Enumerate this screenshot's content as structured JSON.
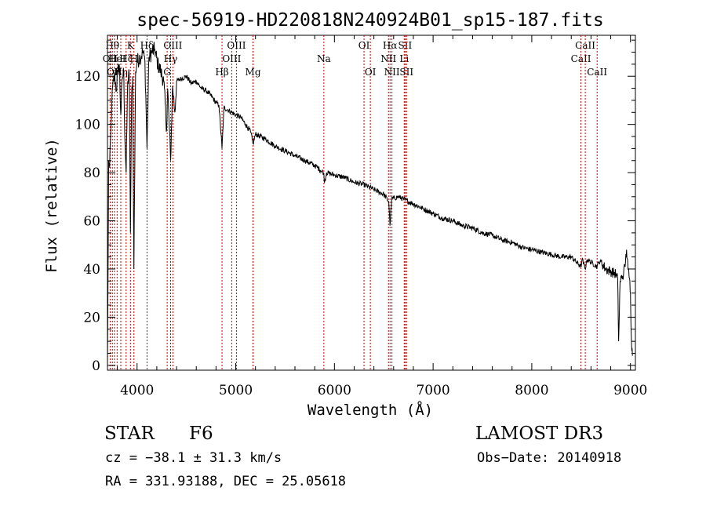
{
  "chart_data": {
    "type": "line",
    "title": "spec-56919-HD220818N240924B01_sp15-187.fits",
    "xlabel": "Wavelength (Å)",
    "ylabel": "Flux (relative)",
    "xlim": [
      3700,
      9050
    ],
    "ylim": [
      -2,
      137
    ],
    "xticks": [
      4000,
      5000,
      6000,
      7000,
      8000,
      9000
    ],
    "yticks": [
      0,
      20,
      40,
      60,
      80,
      100,
      120
    ],
    "grid": false,
    "series": [
      {
        "name": "flux",
        "color": "#000000",
        "anchors": [
          [
            3700,
            0
          ],
          [
            3705,
            30
          ],
          [
            3712,
            85
          ],
          [
            3722,
            82
          ],
          [
            3732,
            95
          ],
          [
            3745,
            110
          ],
          [
            3760,
            118
          ],
          [
            3775,
            120
          ],
          [
            3790,
            114
          ],
          [
            3805,
            122
          ],
          [
            3820,
            125
          ],
          [
            3835,
            104
          ],
          [
            3850,
            119
          ],
          [
            3865,
            122
          ],
          [
            3875,
            96
          ],
          [
            3889,
            80
          ],
          [
            3905,
            118
          ],
          [
            3920,
            121
          ],
          [
            3933,
            55
          ],
          [
            3945,
            112
          ],
          [
            3955,
            120
          ],
          [
            3968,
            40
          ],
          [
            3985,
            122
          ],
          [
            4000,
            126
          ],
          [
            4030,
            128
          ],
          [
            4060,
            130
          ],
          [
            4080,
            126
          ],
          [
            4101,
            90
          ],
          [
            4120,
            128
          ],
          [
            4150,
            130
          ],
          [
            4180,
            131
          ],
          [
            4210,
            125
          ],
          [
            4240,
            122
          ],
          [
            4270,
            118
          ],
          [
            4300,
            98
          ],
          [
            4310,
            115
          ],
          [
            4340,
            85
          ],
          [
            4360,
            116
          ],
          [
            4383,
            105
          ],
          [
            4400,
            118
          ],
          [
            4450,
            119
          ],
          [
            4500,
            120
          ],
          [
            4550,
            117
          ],
          [
            4600,
            118
          ],
          [
            4650,
            115
          ],
          [
            4700,
            114
          ],
          [
            4750,
            112
          ],
          [
            4800,
            109
          ],
          [
            4830,
            108
          ],
          [
            4861,
            90
          ],
          [
            4880,
            107
          ],
          [
            4920,
            106
          ],
          [
            4960,
            105
          ],
          [
            5000,
            104
          ],
          [
            5050,
            103
          ],
          [
            5100,
            100
          ],
          [
            5150,
            97
          ],
          [
            5175,
            92
          ],
          [
            5200,
            96
          ],
          [
            5300,
            94
          ],
          [
            5400,
            91
          ],
          [
            5500,
            89
          ],
          [
            5600,
            87
          ],
          [
            5700,
            85
          ],
          [
            5800,
            83
          ],
          [
            5890,
            80
          ],
          [
            5900,
            76
          ],
          [
            5920,
            80
          ],
          [
            6000,
            79
          ],
          [
            6100,
            78
          ],
          [
            6200,
            76
          ],
          [
            6300,
            75
          ],
          [
            6400,
            73
          ],
          [
            6500,
            71
          ],
          [
            6550,
            68
          ],
          [
            6563,
            58
          ],
          [
            6580,
            69
          ],
          [
            6650,
            70
          ],
          [
            6700,
            69
          ],
          [
            6800,
            67
          ],
          [
            6900,
            65
          ],
          [
            7000,
            63
          ],
          [
            7100,
            61
          ],
          [
            7200,
            60
          ],
          [
            7300,
            58
          ],
          [
            7400,
            57
          ],
          [
            7500,
            55
          ],
          [
            7600,
            54
          ],
          [
            7700,
            52
          ],
          [
            7800,
            51
          ],
          [
            7900,
            49
          ],
          [
            8000,
            48
          ],
          [
            8100,
            47
          ],
          [
            8200,
            46
          ],
          [
            8300,
            45
          ],
          [
            8400,
            45
          ],
          [
            8498,
            41
          ],
          [
            8510,
            44
          ],
          [
            8542,
            40
          ],
          [
            8560,
            44
          ],
          [
            8662,
            41
          ],
          [
            8680,
            43
          ],
          [
            8700,
            43
          ],
          [
            8750,
            40
          ],
          [
            8800,
            39
          ],
          [
            8850,
            38
          ],
          [
            8870,
            36
          ],
          [
            8880,
            10
          ],
          [
            8895,
            35
          ],
          [
            8930,
            38
          ],
          [
            8950,
            43
          ],
          [
            8960,
            48
          ],
          [
            8975,
            40
          ],
          [
            8990,
            36
          ],
          [
            9000,
            30
          ],
          [
            9010,
            10
          ],
          [
            9020,
            4
          ]
        ]
      }
    ],
    "line_markers": [
      {
        "wavelength": 3727,
        "label": "OII",
        "row": 2,
        "color": "#cc0000"
      },
      {
        "wavelength": 3750,
        "label": "Hθ",
        "row": 1,
        "color": "#cc0000"
      },
      {
        "wavelength": 3770,
        "label": "OII",
        "row": 3,
        "color": "#cc0000"
      },
      {
        "wavelength": 3798,
        "label": "HeI",
        "row": 2,
        "color": "#cc0000"
      },
      {
        "wavelength": 3835,
        "label": "Hη",
        "row": 3,
        "color": "#cc0000"
      },
      {
        "wavelength": 3889,
        "label": "Hζ",
        "row": 2,
        "color": "#cc0000"
      },
      {
        "wavelength": 3933,
        "label": "K",
        "row": 1,
        "color": "#cc0000"
      },
      {
        "wavelength": 3968,
        "label": "H",
        "row": 2,
        "color": "#cc0000"
      },
      {
        "wavelength": 4101,
        "label": "Hδ",
        "row": 1,
        "color": "#cc0000"
      },
      {
        "wavelength": 4305,
        "label": "G",
        "row": 3,
        "color": "#cc0000"
      },
      {
        "wavelength": 4340,
        "label": "Hγ",
        "row": 2,
        "color": "#cc0000"
      },
      {
        "wavelength": 4363,
        "label": "OIII",
        "row": 1,
        "color": "#cc0000"
      },
      {
        "wavelength": 4861,
        "label": "Hβ",
        "row": 3,
        "color": "#cc0000"
      },
      {
        "wavelength": 4959,
        "label": "OIII",
        "row": 2,
        "color": "#cc0000"
      },
      {
        "wavelength": 5007,
        "label": "OIII",
        "row": 1,
        "color": "#cc0000"
      },
      {
        "wavelength": 5175,
        "label": "Mg",
        "row": 3,
        "color": "#cc0000"
      },
      {
        "wavelength": 5893,
        "label": "Na",
        "row": 2,
        "color": "#cc0000"
      },
      {
        "wavelength": 6300,
        "label": "OI",
        "row": 1,
        "color": "#cc0000"
      },
      {
        "wavelength": 6364,
        "label": "OI",
        "row": 3,
        "color": "#cc0000"
      },
      {
        "wavelength": 6548,
        "label": "NII",
        "row": 2,
        "color": "#cc0000"
      },
      {
        "wavelength": 6563,
        "label": "Hα",
        "row": 1,
        "color": "#cc0000"
      },
      {
        "wavelength": 6583,
        "label": "NII",
        "row": 3,
        "color": "#cc0000"
      },
      {
        "wavelength": 6707,
        "label": "Li",
        "row": 2,
        "color": "#cc0000"
      },
      {
        "wavelength": 6716,
        "label": "SII",
        "row": 1,
        "color": "#cc0000"
      },
      {
        "wavelength": 6731,
        "label": "SII",
        "row": 3,
        "color": "#cc0000"
      },
      {
        "wavelength": 8498,
        "label": "CaII",
        "row": 2,
        "color": "#cc0000"
      },
      {
        "wavelength": 8542,
        "label": "CaII",
        "row": 1,
        "color": "#cc0000"
      },
      {
        "wavelength": 8662,
        "label": "CaII",
        "row": 3,
        "color": "#cc0000"
      }
    ]
  },
  "info": {
    "object_class": "STAR",
    "subclass": "F6",
    "survey": "LAMOST DR3",
    "redshift": "cz = −38.1 ± 31.3 km/s",
    "obs_date": "Obs−Date: 20140918",
    "coords": "RA = 331.93188, DEC =  25.05618"
  }
}
